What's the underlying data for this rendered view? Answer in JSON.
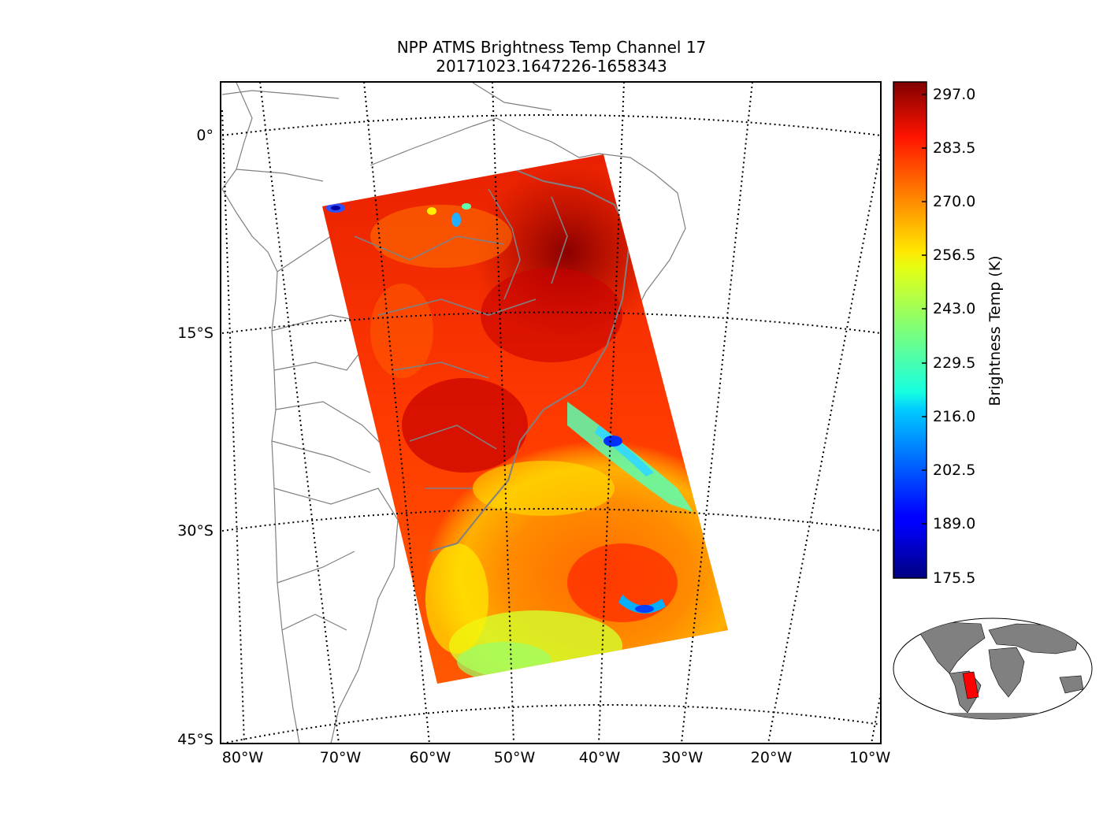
{
  "title": {
    "line1": "NPP ATMS Brightness Temp Channel 17",
    "line2": "20171023.1647226-1658343"
  },
  "map": {
    "lat_labels": [
      "0°",
      "15°S",
      "30°S",
      "45°S"
    ],
    "lon_labels": [
      "80°W",
      "70°W",
      "60°W",
      "50°W",
      "40°W",
      "30°W",
      "20°W",
      "10°W"
    ],
    "land_outline_color": "#808080",
    "gridline_style": "dotted"
  },
  "colorbar": {
    "label": "Brightness Temp (K)",
    "colormap": "jet",
    "min": 175.5,
    "max": 297.0,
    "ticks": [
      "297.0",
      "283.5",
      "270.0",
      "256.5",
      "243.0",
      "229.5",
      "216.0",
      "202.5",
      "189.0",
      "175.5"
    ]
  },
  "inset": {
    "land_color": "#808080",
    "swath_color": "#ff0000"
  }
}
